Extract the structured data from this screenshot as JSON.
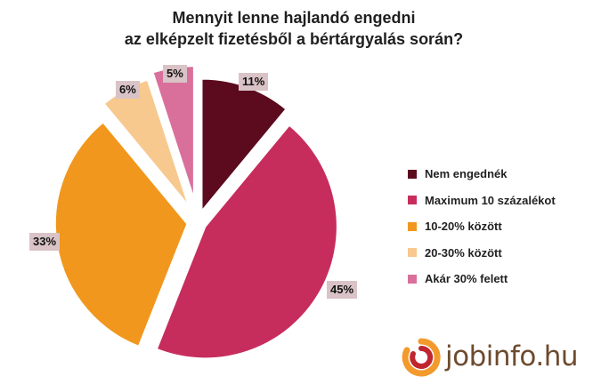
{
  "chart_data": {
    "type": "pie",
    "title": [
      "Mennyit lenne hajlandó engedni",
      "az elképzelt fizetésből a bértárgyalás során?"
    ],
    "categories": [
      "Nem engednék",
      "Maximum 10 százalékot",
      "10-20% között",
      "20-30% között",
      "Akár 30% felett"
    ],
    "values": [
      11,
      45,
      33,
      6,
      5
    ],
    "value_labels": [
      "11%",
      "45%",
      "33%",
      "6%",
      "5%"
    ],
    "colors": [
      "#5c0a1e",
      "#c72d5c",
      "#f1971d",
      "#f7c98e",
      "#d9709b"
    ],
    "legend_position": "right",
    "exploded": true
  },
  "logo": {
    "text": "jobinfo.hu",
    "icon": "jobinfo-swirl-icon",
    "colors": [
      "#f39a2c",
      "#c0262f"
    ]
  }
}
